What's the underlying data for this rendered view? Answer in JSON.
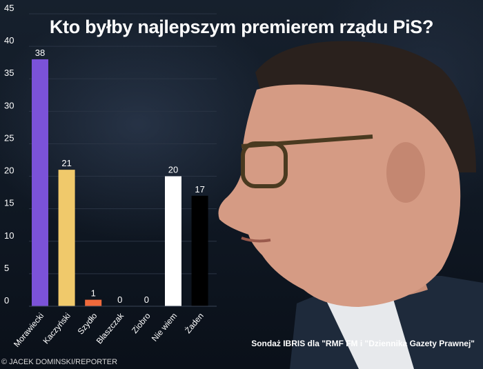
{
  "chart_data": {
    "type": "bar",
    "title": "Kto byłby najlepszym premierem rządu PiS?",
    "categories": [
      "Morawiecki",
      "Kaczyński",
      "Szydło",
      "Błaszczak",
      "Ziobro",
      "Nie wiem",
      "Żaden"
    ],
    "values": [
      38,
      21,
      1,
      0,
      0,
      20,
      17
    ],
    "colors": [
      "#7b52d8",
      "#f0c96b",
      "#f06a3c",
      "#9aa0a8",
      "#9aa0a8",
      "#ffffff",
      "#000000"
    ],
    "ylim": [
      0,
      45
    ],
    "yticks": [
      0,
      5,
      10,
      15,
      20,
      25,
      30,
      35,
      40,
      45
    ],
    "xlabel": "",
    "ylabel": "",
    "grid": true,
    "legend": "none"
  },
  "source": "Sondaż IBRIS dla \"RMF FM i \"Dziennika Gazety Prawnej\"",
  "copyright": "© JACEK DOMINSKI/REPORTER",
  "photo": "person-profile-photo"
}
